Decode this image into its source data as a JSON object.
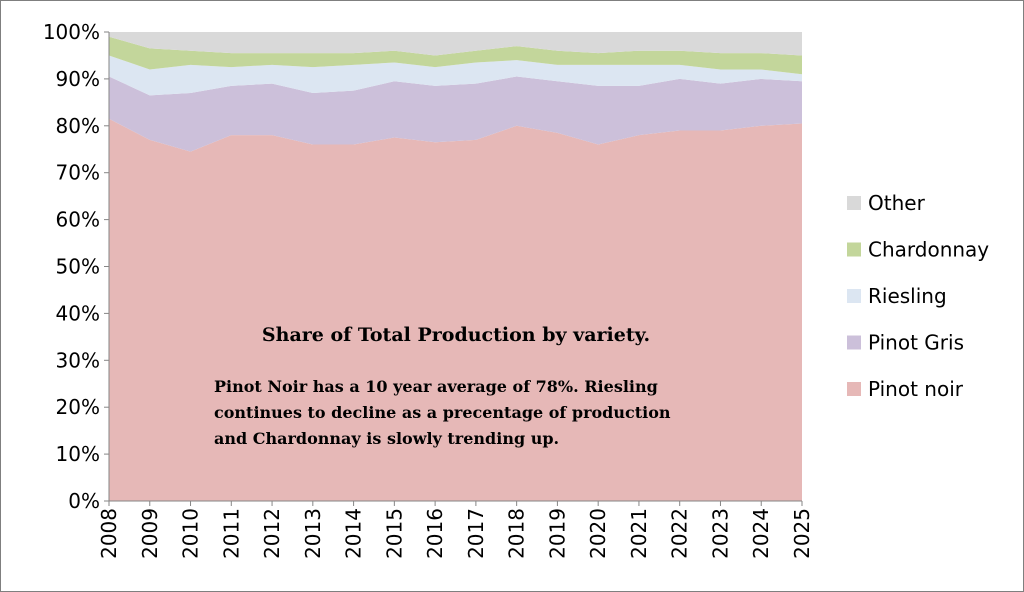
{
  "chart_data": {
    "type": "area",
    "stacked": true,
    "percent": true,
    "x": [
      "2008",
      "2009",
      "2010",
      "2011",
      "2012",
      "2013",
      "2014",
      "2015",
      "2016",
      "2017",
      "2018",
      "2019",
      "2020",
      "2021",
      "2022",
      "2023",
      "2024",
      "2025"
    ],
    "ylim": [
      0,
      100
    ],
    "yticks": [
      "0%",
      "10%",
      "20%",
      "30%",
      "40%",
      "50%",
      "60%",
      "70%",
      "80%",
      "90%",
      "100%"
    ],
    "grid": false,
    "legend_position": "right",
    "series": [
      {
        "name": "Pinot noir",
        "color": "#e6b8b7",
        "values": [
          81.5,
          77,
          74.5,
          78,
          78,
          76,
          76,
          77.5,
          76.5,
          77,
          80,
          78.5,
          76,
          78,
          79,
          79,
          80,
          80.5
        ]
      },
      {
        "name": "Pinot Gris",
        "color": "#ccc0da",
        "values": [
          9,
          9.5,
          12.5,
          10.5,
          11,
          11,
          11.5,
          12,
          12,
          12,
          10.5,
          11,
          12.5,
          10.5,
          11,
          10,
          10,
          9
        ]
      },
      {
        "name": "Riesling",
        "color": "#dce6f2",
        "values": [
          4.5,
          5.5,
          6,
          4,
          4,
          5.5,
          5.5,
          4,
          4,
          4.5,
          3.5,
          3.5,
          4.5,
          4.5,
          3,
          3,
          2,
          1.5
        ]
      },
      {
        "name": "Chardonnay",
        "color": "#c3d69b",
        "values": [
          4,
          4.5,
          3,
          3,
          2.5,
          3,
          2.5,
          2.5,
          2.5,
          2.5,
          3,
          3,
          2.5,
          3,
          3,
          3.5,
          3.5,
          4
        ]
      },
      {
        "name": "Other",
        "color": "#d9d9d9",
        "values": [
          1,
          3.5,
          4,
          4.5,
          4.5,
          4.5,
          4.5,
          4,
          5,
          4,
          3,
          4,
          4.5,
          4,
          4,
          4.5,
          4.5,
          5
        ]
      }
    ],
    "legend_order": [
      "Other",
      "Chardonnay",
      "Riesling",
      "Pinot Gris",
      "Pinot noir"
    ],
    "annotation": {
      "title": "Share of Total Production by variety.",
      "lines": [
        "Pinot Noir has a 10 year average of 78%. Riesling",
        "continues to decline as a precentage of production",
        "and Chardonnay is slowly trending up."
      ]
    }
  }
}
